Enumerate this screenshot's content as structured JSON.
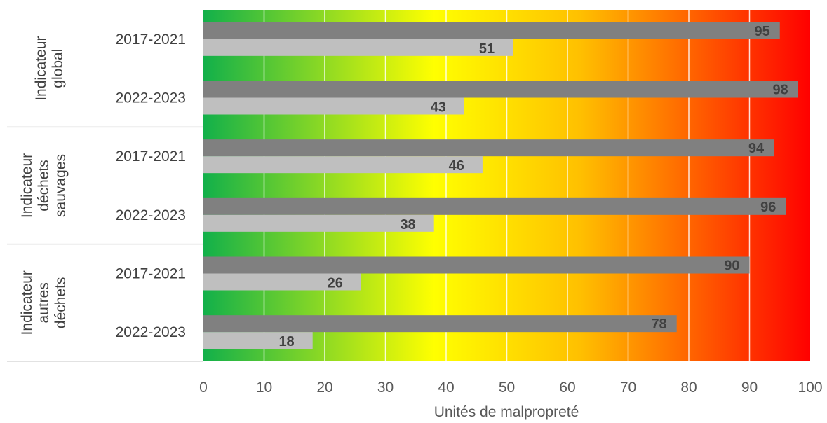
{
  "chart_data": {
    "type": "bar",
    "orientation": "horizontal",
    "xlabel": "Unités de malpropreté",
    "xlim": [
      0,
      100
    ],
    "xticks": [
      "0",
      "10",
      "20",
      "30",
      "40",
      "50",
      "60",
      "70",
      "80",
      "90",
      "100"
    ],
    "background": "green-yellow-red gradient from 0 to 100",
    "gradient_colors": [
      "#12b04a",
      "#ffff00",
      "#ffc000",
      "#ff0000"
    ],
    "grid": true,
    "groups": [
      {
        "label": [
          "Indicateur",
          "global"
        ],
        "rows": [
          {
            "label": "2017-2021",
            "light": 51,
            "dark": 95
          },
          {
            "label": "2022-2023",
            "light": 43,
            "dark": 98
          }
        ]
      },
      {
        "label": [
          "Indicateur",
          "déchets",
          "sauvages"
        ],
        "rows": [
          {
            "label": "2017-2021",
            "light": 46,
            "dark": 94
          },
          {
            "label": "2022-2023",
            "light": 38,
            "dark": 96
          }
        ]
      },
      {
        "label": [
          "Indicateur",
          "autres",
          "déchets"
        ],
        "rows": [
          {
            "label": "2017-2021",
            "light": 26,
            "dark": 90
          },
          {
            "label": "2022-2023",
            "light": 18,
            "dark": 78
          }
        ]
      }
    ],
    "series_colors": {
      "dark": "#808080",
      "light": "#bfbfbf"
    }
  }
}
